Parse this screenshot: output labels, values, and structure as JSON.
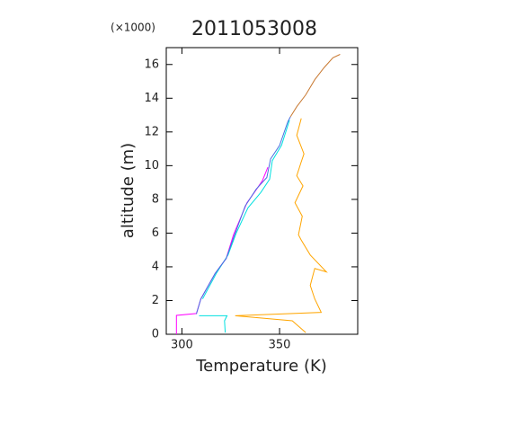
{
  "chart_data": {
    "type": "line",
    "title": "2011053008",
    "y_multiplier": "(×1000)",
    "x_label": "Temperature (K)",
    "y_label": "altitude (m)",
    "xlim": [
      292,
      390
    ],
    "ylim": [
      0,
      17
    ],
    "xticks": [
      300,
      350
    ],
    "yticks": [
      0,
      2,
      4,
      6,
      8,
      10,
      12,
      14,
      16
    ],
    "series": [
      {
        "color": "#ff00ff",
        "x": [
          297.2,
          297.2,
          307.4,
          309.7,
          317,
          322.7,
          326.4,
          333.3,
          337,
          341.2,
          344
        ],
        "values": [
          0,
          1.12,
          1.23,
          2.1,
          3.6,
          4.5,
          5.9,
          7.8,
          8.4,
          9.1,
          9.9
        ]
      },
      {
        "color": "#00e0e0",
        "x": [
          322.2,
          321.8,
          323.1,
          308.8,
          null,
          310.6,
          317.6,
          323.6,
          327.8,
          333.8,
          340.3,
          344.9,
          346.3,
          351,
          355.1
        ],
        "values": [
          0.1,
          0.8,
          1.1,
          1.1,
          null,
          2.1,
          3.6,
          4.7,
          6,
          7.5,
          8.4,
          9.2,
          10.3,
          11.2,
          12.7
        ]
      },
      {
        "color": "#4a6fe0",
        "x": [
          307.4,
          309.7,
          317,
          322.7,
          327.3,
          332.4,
          338,
          343.5,
          345.4,
          350,
          354.2,
          355.6
        ],
        "values": [
          1.2,
          2.1,
          3.6,
          4.5,
          6,
          7.6,
          8.6,
          9.3,
          10.4,
          11.2,
          12.6,
          12.9
        ]
      },
      {
        "color": "#ffa500",
        "x": [
          363.4,
          356.5,
          327.3,
          371.3,
          368,
          365.7,
          368,
          374,
          365.7,
          361,
          359.7,
          361.6,
          357.9,
          362,
          358.8,
          361,
          362.5,
          358.8,
          361.1
        ],
        "values": [
          0.1,
          0.8,
          1.1,
          1.3,
          2.1,
          2.9,
          3.9,
          3.7,
          4.7,
          5.6,
          5.9,
          7,
          7.8,
          8.8,
          9.4,
          10.2,
          10.7,
          11.8,
          12.8
        ]
      },
      {
        "color": "#c87830",
        "x": [
          355.6,
          358.8,
          363.4,
          368,
          372.7,
          377.3,
          381
        ],
        "values": [
          12.9,
          13.5,
          14.2,
          15.1,
          15.8,
          16.4,
          16.6
        ]
      }
    ]
  }
}
